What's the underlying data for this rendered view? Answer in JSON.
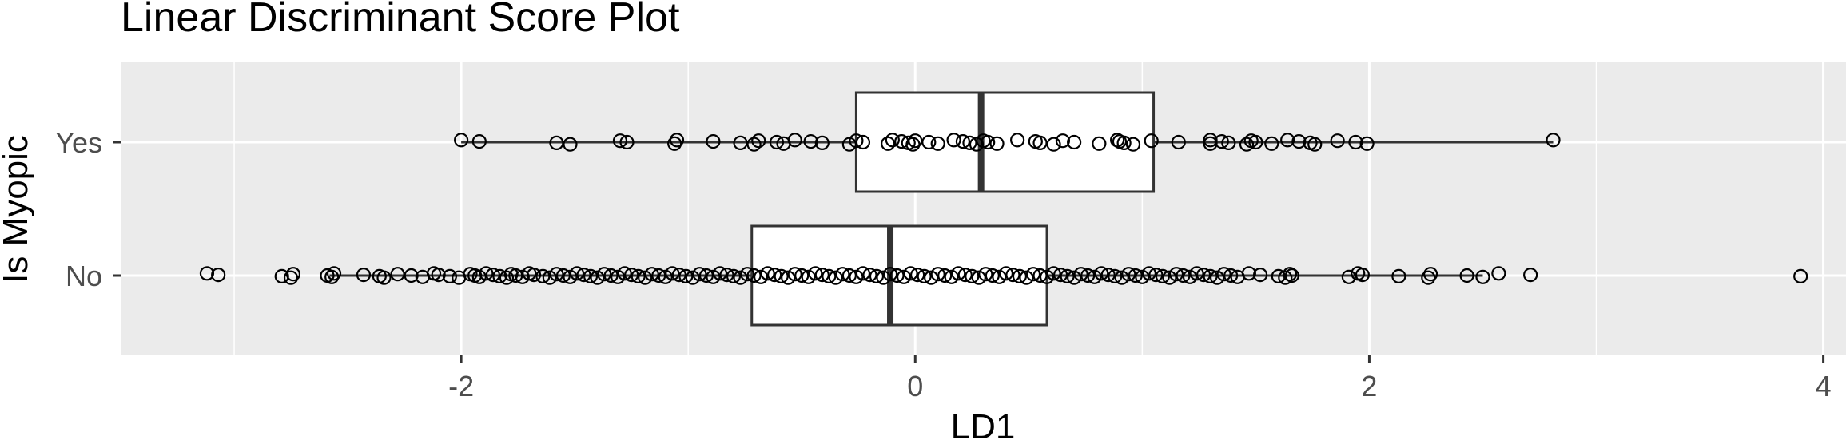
{
  "chart_data": {
    "type": "boxplot",
    "title": "Linear Discriminant Score Plot",
    "xlabel": "LD1",
    "ylabel": "Is Myopic",
    "xlim": [
      -3.5,
      4.1
    ],
    "x_ticks": [
      "-2",
      "0",
      "2",
      "4"
    ],
    "x_tick_values": [
      -2,
      0,
      2,
      4
    ],
    "categories": [
      "No",
      "Yes"
    ],
    "grid": true,
    "colors": {
      "panel": "#ebebeb",
      "grid": "#ffffff",
      "box_fill": "#ffffff",
      "box_stroke": "#333333",
      "point": "#000000"
    },
    "boxes": [
      {
        "category": "No",
        "whisker_low": -2.58,
        "q1": -0.72,
        "median": -0.11,
        "q3": 0.58,
        "whisker_high": 2.5,
        "points": [
          -3.12,
          -3.07,
          -2.79,
          -2.75,
          -2.74,
          -2.59,
          -2.57,
          -2.56,
          -2.43,
          -2.36,
          -2.34,
          -2.28,
          -2.22,
          -2.17,
          -2.12,
          -2.1,
          -2.05,
          -2.01,
          -1.96,
          -1.94,
          -1.92,
          -1.89,
          -1.86,
          -1.83,
          -1.8,
          -1.78,
          -1.76,
          -1.73,
          -1.7,
          -1.68,
          -1.64,
          -1.61,
          -1.58,
          -1.55,
          -1.52,
          -1.49,
          -1.46,
          -1.43,
          -1.4,
          -1.37,
          -1.34,
          -1.31,
          -1.28,
          -1.25,
          -1.22,
          -1.19,
          -1.16,
          -1.13,
          -1.1,
          -1.07,
          -1.04,
          -1.01,
          -0.98,
          -0.95,
          -0.92,
          -0.89,
          -0.86,
          -0.83,
          -0.8,
          -0.77,
          -0.74,
          -0.71,
          -0.68,
          -0.65,
          -0.62,
          -0.59,
          -0.56,
          -0.53,
          -0.5,
          -0.47,
          -0.44,
          -0.41,
          -0.38,
          -0.35,
          -0.32,
          -0.29,
          -0.26,
          -0.23,
          -0.2,
          -0.17,
          -0.14,
          -0.11,
          -0.08,
          -0.05,
          -0.02,
          0.01,
          0.04,
          0.07,
          0.1,
          0.13,
          0.16,
          0.19,
          0.22,
          0.25,
          0.28,
          0.31,
          0.34,
          0.37,
          0.4,
          0.43,
          0.46,
          0.49,
          0.52,
          0.55,
          0.58,
          0.61,
          0.64,
          0.67,
          0.7,
          0.73,
          0.76,
          0.79,
          0.82,
          0.85,
          0.88,
          0.91,
          0.94,
          0.97,
          1.0,
          1.03,
          1.06,
          1.09,
          1.12,
          1.15,
          1.18,
          1.21,
          1.24,
          1.27,
          1.3,
          1.33,
          1.36,
          1.39,
          1.42,
          1.47,
          1.52,
          1.6,
          1.63,
          1.65,
          1.66,
          1.91,
          1.95,
          1.97,
          2.13,
          2.26,
          2.27,
          2.43,
          2.5,
          2.57,
          2.71,
          3.9
        ]
      },
      {
        "category": "Yes",
        "whisker_low": -2.0,
        "q1": -0.26,
        "median": 0.29,
        "q3": 1.05,
        "whisker_high": 2.81,
        "points": [
          -2.0,
          -1.92,
          -1.58,
          -1.52,
          -1.3,
          -1.27,
          -1.06,
          -1.05,
          -0.89,
          -0.77,
          -0.71,
          -0.69,
          -0.61,
          -0.58,
          -0.53,
          -0.46,
          -0.41,
          -0.29,
          -0.26,
          -0.23,
          -0.12,
          -0.1,
          -0.06,
          -0.03,
          -0.01,
          0.0,
          0.06,
          0.1,
          0.17,
          0.21,
          0.24,
          0.27,
          0.3,
          0.32,
          0.36,
          0.45,
          0.53,
          0.55,
          0.61,
          0.65,
          0.7,
          0.81,
          0.89,
          0.9,
          0.92,
          0.96,
          1.04,
          1.16,
          1.3,
          1.3,
          1.35,
          1.38,
          1.46,
          1.48,
          1.5,
          1.57,
          1.64,
          1.69,
          1.74,
          1.76,
          1.86,
          1.94,
          1.99,
          2.81
        ]
      }
    ]
  }
}
